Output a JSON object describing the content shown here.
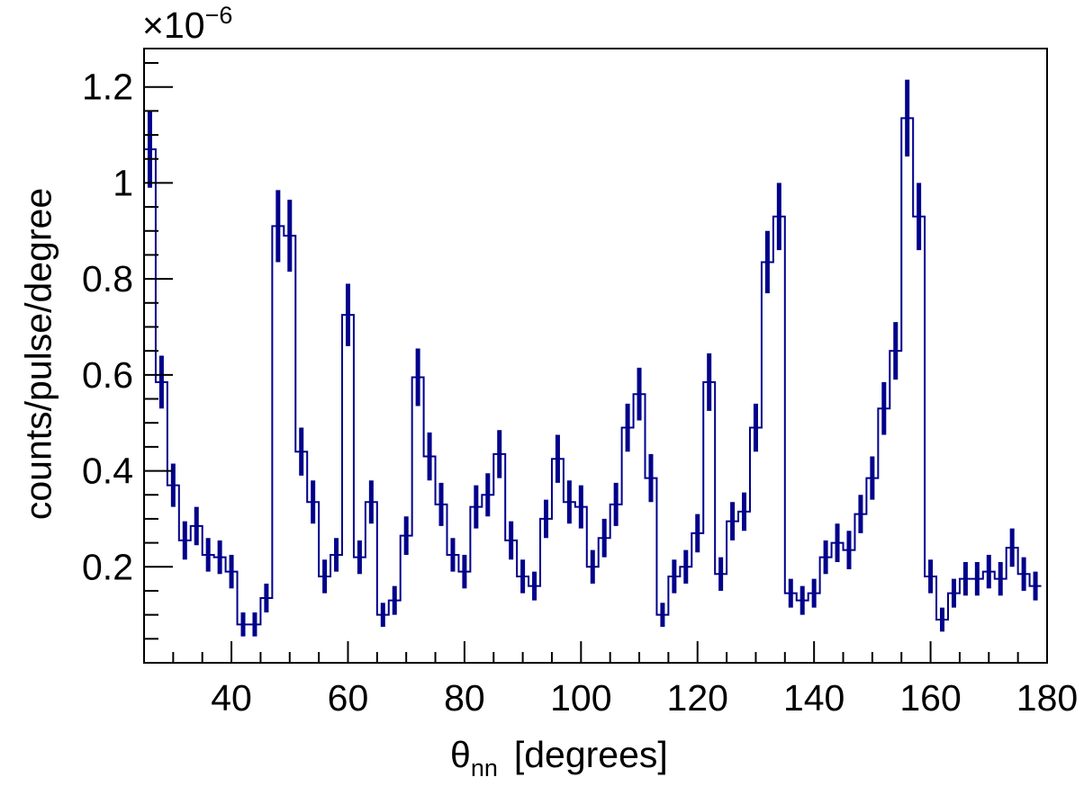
{
  "chart_data": {
    "type": "histogram",
    "title": "",
    "xlabel_symbol": "θ",
    "xlabel_subscript": "nn",
    "xlabel_units": "[degrees]",
    "ylabel": "counts/pulse/degree",
    "y_scale_factor_prefix": "×10",
    "y_scale_factor_exponent": "−6",
    "xlim": [
      25,
      180
    ],
    "ylim": [
      0.0,
      1.28
    ],
    "x_ticks": [
      "40",
      "60",
      "80",
      "100",
      "120",
      "140",
      "160",
      "180"
    ],
    "y_ticks": [
      "0.2",
      "0.4",
      "0.6",
      "0.8",
      "1",
      "1.2"
    ],
    "grid": false,
    "legend": "none",
    "color": "#00008b",
    "bin_width": 2,
    "bin_lower_edges": [
      25,
      27,
      29,
      31,
      33,
      35,
      37,
      39,
      41,
      43,
      45,
      47,
      49,
      51,
      53,
      55,
      57,
      59,
      61,
      63,
      65,
      67,
      69,
      71,
      73,
      75,
      77,
      79,
      81,
      83,
      85,
      87,
      89,
      91,
      93,
      95,
      97,
      99,
      101,
      103,
      105,
      107,
      109,
      111,
      113,
      115,
      117,
      119,
      121,
      123,
      125,
      127,
      129,
      131,
      133,
      135,
      137,
      139,
      141,
      143,
      145,
      147,
      149,
      151,
      153,
      155,
      157,
      159,
      161,
      163,
      165,
      167,
      169,
      171,
      173,
      175,
      177
    ],
    "values": [
      1.07,
      0.585,
      0.37,
      0.255,
      0.285,
      0.225,
      0.22,
      0.19,
      0.08,
      0.08,
      0.135,
      0.91,
      0.89,
      0.44,
      0.335,
      0.18,
      0.225,
      0.725,
      0.22,
      0.335,
      0.1,
      0.13,
      0.265,
      0.595,
      0.43,
      0.33,
      0.225,
      0.19,
      0.325,
      0.35,
      0.435,
      0.255,
      0.18,
      0.16,
      0.3,
      0.425,
      0.335,
      0.325,
      0.2,
      0.26,
      0.33,
      0.49,
      0.56,
      0.385,
      0.1,
      0.18,
      0.2,
      0.27,
      0.585,
      0.185,
      0.295,
      0.315,
      0.49,
      0.835,
      0.93,
      0.145,
      0.13,
      0.145,
      0.22,
      0.25,
      0.235,
      0.31,
      0.385,
      0.53,
      0.65,
      1.135,
      0.93,
      0.18,
      0.09,
      0.145,
      0.175,
      0.175,
      0.19,
      0.175,
      0.24,
      0.185,
      0.16
    ],
    "errors": [
      0.08,
      0.055,
      0.045,
      0.04,
      0.04,
      0.035,
      0.035,
      0.035,
      0.025,
      0.025,
      0.03,
      0.075,
      0.075,
      0.05,
      0.045,
      0.035,
      0.035,
      0.065,
      0.035,
      0.045,
      0.025,
      0.03,
      0.04,
      0.06,
      0.05,
      0.045,
      0.035,
      0.035,
      0.045,
      0.045,
      0.05,
      0.04,
      0.035,
      0.03,
      0.04,
      0.05,
      0.045,
      0.045,
      0.035,
      0.04,
      0.045,
      0.05,
      0.055,
      0.05,
      0.025,
      0.035,
      0.035,
      0.04,
      0.06,
      0.035,
      0.04,
      0.04,
      0.05,
      0.065,
      0.07,
      0.03,
      0.03,
      0.03,
      0.035,
      0.04,
      0.04,
      0.04,
      0.045,
      0.055,
      0.06,
      0.08,
      0.07,
      0.035,
      0.025,
      0.03,
      0.035,
      0.035,
      0.035,
      0.035,
      0.04,
      0.035,
      0.03
    ]
  }
}
